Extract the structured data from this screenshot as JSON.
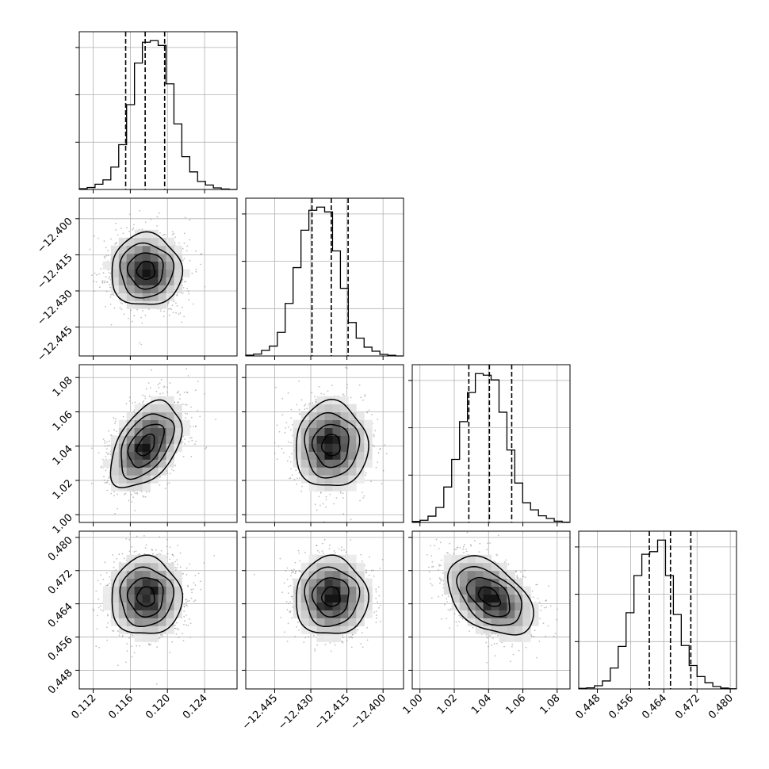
{
  "chart_data": {
    "type": "corner",
    "grid": true,
    "parameters": [
      {
        "index": 0,
        "mean": 0.1177,
        "sd": 0.0019,
        "axis_range": [
          0.1105,
          0.1275
        ],
        "ticks": [
          0.112,
          0.116,
          0.12,
          0.124
        ],
        "tick_labels": [
          "0.112",
          "0.116",
          "0.120",
          "0.124"
        ],
        "quantiles": [
          0.1155,
          0.1176,
          0.1197
        ]
      },
      {
        "index": 1,
        "mean": -12.4215,
        "sd": 0.0075,
        "axis_range": [
          -12.457,
          -12.3915
        ],
        "ticks": [
          -12.445,
          -12.43,
          -12.415,
          -12.4
        ],
        "tick_labels": [
          "−12.445",
          "−12.430",
          "−12.415",
          "−12.400"
        ],
        "quantiles": [
          -12.4295,
          -12.4215,
          -12.4145
        ]
      },
      {
        "index": 2,
        "mean": 1.0405,
        "sd": 0.0125,
        "axis_range": [
          0.9955,
          1.0875
        ],
        "ticks": [
          1.0,
          1.02,
          1.04,
          1.06,
          1.08
        ],
        "tick_labels": [
          "1.00",
          "1.02",
          "1.04",
          "1.06",
          "1.08"
        ],
        "quantiles": [
          1.0285,
          1.0405,
          1.0535
        ]
      },
      {
        "index": 3,
        "mean": 0.4657,
        "sd": 0.0047,
        "axis_range": [
          0.4435,
          0.4815
        ],
        "ticks": [
          0.448,
          0.456,
          0.464,
          0.472,
          0.48
        ],
        "tick_labels": [
          "0.448",
          "0.456",
          "0.464",
          "0.472",
          "0.480"
        ],
        "quantiles": [
          0.4605,
          0.4656,
          0.4705
        ]
      }
    ],
    "histograms": [
      {
        "param": 0,
        "bins": 20,
        "bin_range": [
          0.1105,
          0.1275
        ],
        "counts": [
          5,
          12,
          33,
          60,
          140,
          280,
          530,
          790,
          920,
          930,
          900,
          660,
          410,
          205,
          110,
          50,
          28,
          10,
          3,
          0
        ]
      },
      {
        "param": 1,
        "bins": 20,
        "bin_range": [
          -12.457,
          -12.3915
        ],
        "counts": [
          5,
          12,
          35,
          62,
          148,
          330,
          555,
          790,
          915,
          935,
          905,
          660,
          425,
          210,
          112,
          55,
          30,
          10,
          4,
          0
        ]
      },
      {
        "param": 2,
        "bins": 20,
        "bin_range": [
          0.9955,
          1.0875
        ],
        "counts": [
          6,
          14,
          40,
          95,
          225,
          400,
          640,
          825,
          945,
          935,
          905,
          700,
          460,
          250,
          125,
          80,
          42,
          25,
          8,
          2
        ]
      },
      {
        "param": 3,
        "bins": 20,
        "bin_range": [
          0.4435,
          0.4815
        ],
        "counts": [
          3,
          6,
          18,
          45,
          118,
          240,
          430,
          640,
          760,
          775,
          840,
          640,
          420,
          245,
          132,
          70,
          35,
          14,
          5,
          1
        ]
      }
    ],
    "pairs": [
      {
        "x": 0,
        "y": 1,
        "correlation": 0.0
      },
      {
        "x": 0,
        "y": 2,
        "correlation": 0.45
      },
      {
        "x": 1,
        "y": 2,
        "correlation": 0.0
      },
      {
        "x": 0,
        "y": 3,
        "correlation": 0.0
      },
      {
        "x": 1,
        "y": 3,
        "correlation": 0.0
      },
      {
        "x": 2,
        "y": 3,
        "correlation": -0.45
      }
    ],
    "contour_levels_sigma": [
      0.5,
      1.0,
      1.5,
      2.0
    ],
    "colors": {
      "line": "#000000",
      "scatter": "#8a8a8a",
      "grid": "#b0b0b0",
      "background": "#ffffff"
    }
  }
}
